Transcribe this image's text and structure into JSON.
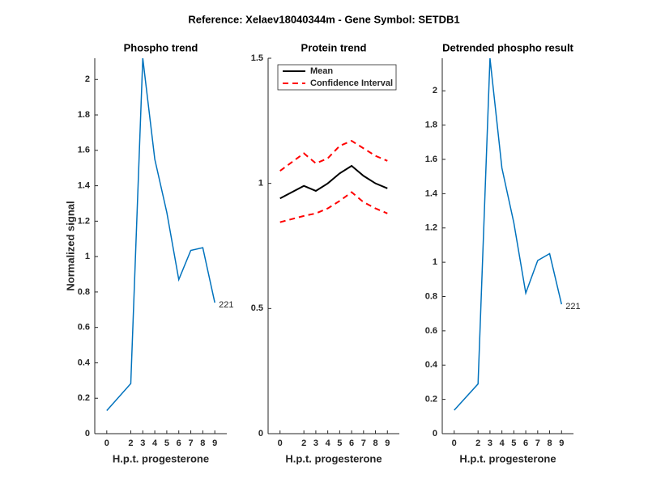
{
  "title": "Reference:  Xelaev18040344m - Gene Symbol:  SETDB1",
  "chart_data": [
    {
      "type": "line",
      "title": "Phospho trend",
      "xlabel": "H.p.t. progesterone",
      "ylabel": "Normalized signal",
      "x": [
        0,
        2,
        3,
        4,
        5,
        6,
        7,
        8,
        9
      ],
      "series": [
        {
          "name": "221",
          "color": "#0072bd",
          "values": [
            0.13,
            0.283,
            2.12,
            1.55,
            1.25,
            0.87,
            1.035,
            1.05,
            0.74
          ]
        }
      ],
      "end_label": "221",
      "xlim": [
        -1,
        10
      ],
      "xticks": [
        0,
        2,
        3,
        4,
        5,
        6,
        7,
        8,
        9
      ],
      "ylim": [
        0,
        2.12
      ],
      "yticks": [
        0,
        0.2,
        0.4,
        0.6,
        0.8,
        1,
        1.2,
        1.4,
        1.6,
        1.8,
        2
      ]
    },
    {
      "type": "band",
      "title": "Protein trend",
      "xlabel": "H.p.t. progesterone",
      "x": [
        0,
        2,
        3,
        4,
        5,
        6,
        7,
        8,
        9
      ],
      "series": [
        {
          "name": "Mean",
          "color": "#000000",
          "values": [
            0.94,
            0.99,
            0.97,
            1.0,
            1.04,
            1.07,
            1.03,
            1.0,
            0.98
          ]
        },
        {
          "name": "Confidence Interval",
          "color": "#ff0000",
          "dashed": true,
          "upper": [
            1.05,
            1.12,
            1.08,
            1.1,
            1.15,
            1.17,
            1.14,
            1.11,
            1.09
          ],
          "lower": [
            0.845,
            0.87,
            0.88,
            0.9,
            0.93,
            0.965,
            0.925,
            0.9,
            0.88
          ]
        }
      ],
      "legend": "upper-left",
      "xlim": [
        -1,
        10
      ],
      "xticks": [
        0,
        2,
        3,
        4,
        5,
        6,
        7,
        8,
        9
      ],
      "ylim": [
        0,
        1.5
      ],
      "yticks": [
        0,
        0.5,
        1,
        1.5
      ]
    },
    {
      "type": "line",
      "title": "Detrended phospho result",
      "xlabel": "H.p.t. progesterone",
      "x": [
        0,
        2,
        3,
        4,
        5,
        6,
        7,
        8,
        9
      ],
      "series": [
        {
          "name": "221",
          "color": "#0072bd",
          "values": [
            0.137,
            0.29,
            2.19,
            1.55,
            1.23,
            0.82,
            1.01,
            1.05,
            0.755
          ]
        }
      ],
      "end_label": "221",
      "xlim": [
        -1,
        10
      ],
      "xticks": [
        0,
        2,
        3,
        4,
        5,
        6,
        7,
        8,
        9
      ],
      "ylim": [
        0,
        2.19
      ],
      "yticks": [
        0,
        0.2,
        0.4,
        0.6,
        0.8,
        1,
        1.2,
        1.4,
        1.6,
        1.8,
        2
      ]
    }
  ]
}
